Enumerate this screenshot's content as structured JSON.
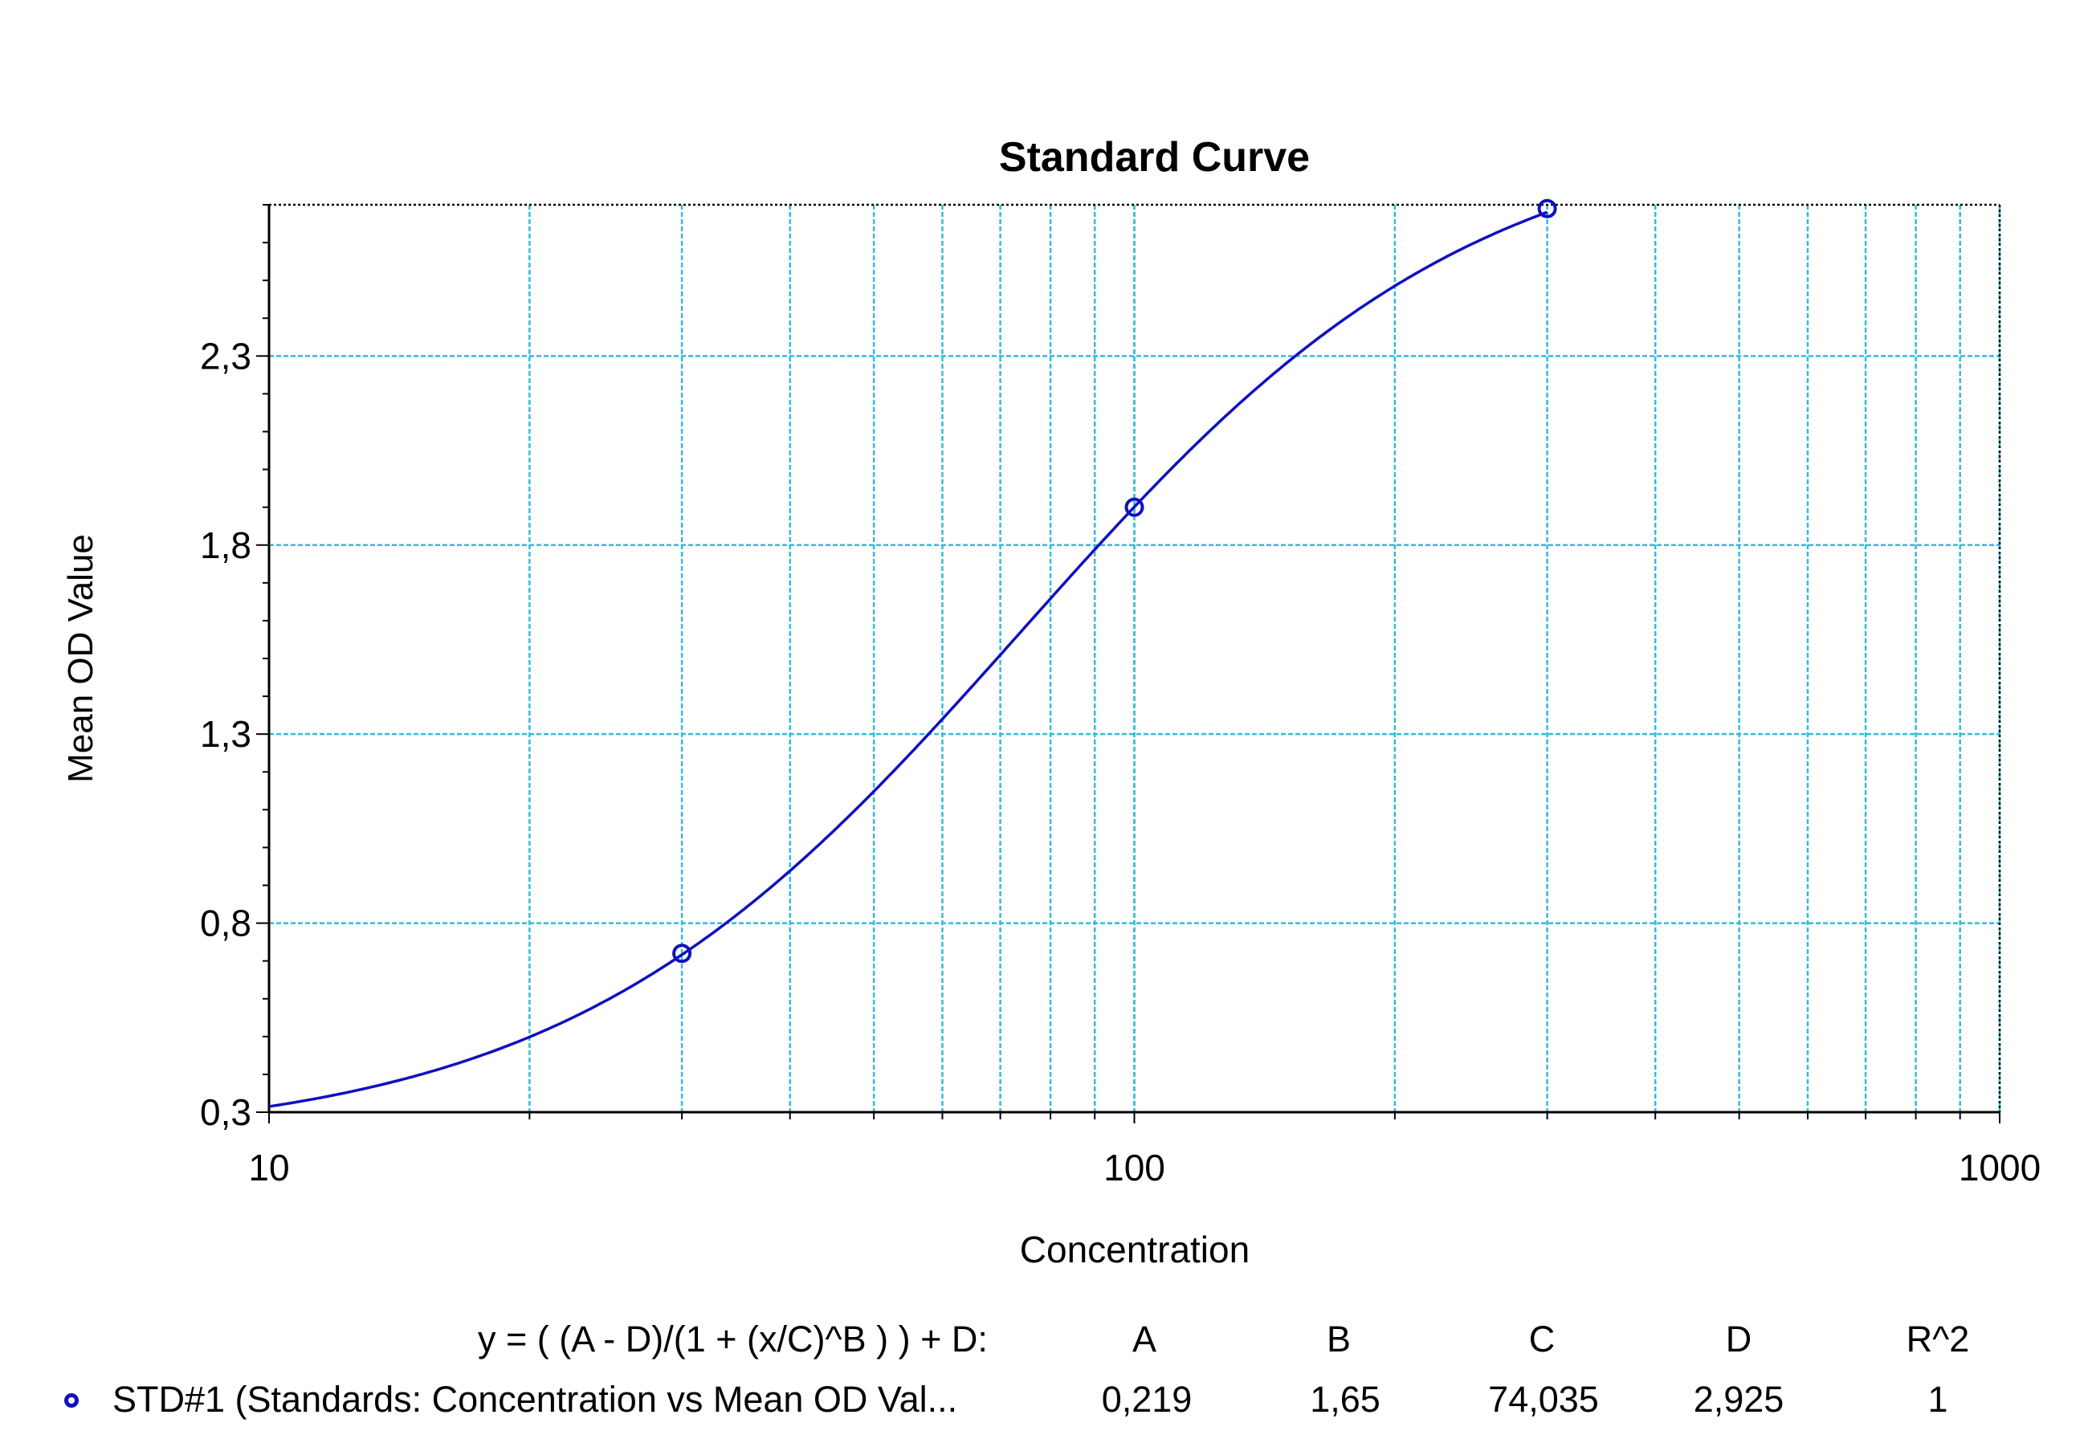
{
  "chart_data": {
    "type": "scatter",
    "title": "Standard Curve",
    "xlabel": "Concentration",
    "ylabel": "Mean OD Value",
    "x_scale": "log",
    "xlim": [
      10,
      1000
    ],
    "ylim": [
      0.3,
      2.7
    ],
    "x_ticks": [
      10,
      100,
      1000
    ],
    "x_tick_labels": [
      "10",
      "100",
      "1000"
    ],
    "y_ticks": [
      0.3,
      0.8,
      1.3,
      1.8,
      2.3
    ],
    "y_tick_labels": [
      "0,3",
      "0,8",
      "1,3",
      "1,8",
      "2,3"
    ],
    "grid": true,
    "colors": {
      "curve": "#1010c0",
      "grid": "#33bbdd",
      "frame": "#000000"
    },
    "series": [
      {
        "name": "STD#1 (Standards: Concentration vs Mean OD Val...",
        "x": [
          30,
          100,
          300
        ],
        "y": [
          0.72,
          1.9,
          2.69
        ]
      }
    ],
    "fit": {
      "equation": "y = ( (A - D)/(1 + (x/C)^B ) ) + D:",
      "A": 0.219,
      "B": 1.65,
      "C": 74.035,
      "D": 2.925
    }
  },
  "legend": {
    "equation": "y = ( (A - D)/(1 + (x/C)^B ) ) + D:",
    "headers": [
      "A",
      "B",
      "C",
      "D",
      "R^2"
    ],
    "series_label": "STD#1 (Standards: Concentration vs Mean OD Val...",
    "values": [
      "0,219",
      "1,65",
      "74,035",
      "2,925",
      "1"
    ]
  }
}
